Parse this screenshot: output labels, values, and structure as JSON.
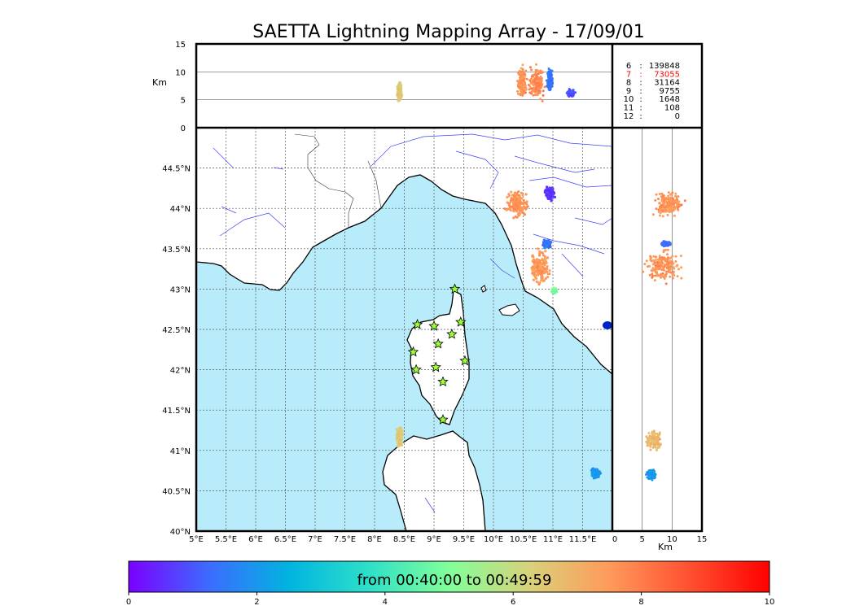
{
  "chart_data": {
    "type": "scatter",
    "title": "SAETTA Lightning Mapping Array - 17/09/01",
    "colors": {
      "sea": "#b8ecfb",
      "land": "#ffffff",
      "coast": "#000000",
      "river": "#4040ff",
      "station_fill": "#99ff33",
      "count_highlight": "#ff0000"
    },
    "time_colormap": [
      "#7b00ff",
      "#3d6bff",
      "#00b4e0",
      "#2ee0c8",
      "#80ff99",
      "#d8d27a",
      "#ff9a5a",
      "#ff5030",
      "#ff0000"
    ],
    "map": {
      "lon_range": [
        5,
        12
      ],
      "lat_range": [
        40,
        45
      ],
      "lon_ticks": [
        5,
        5.5,
        6,
        6.5,
        7,
        7.5,
        8,
        8.5,
        9,
        9.5,
        10,
        10.5,
        11,
        11.5
      ],
      "lon_tick_labels": [
        "5°E",
        "5.5°E",
        "6°E",
        "6.5°E",
        "7°E",
        "7.5°E",
        "8°E",
        "8.5°E",
        "9°E",
        "9.5°E",
        "10°E",
        "10.5°E",
        "11°E",
        "11.5°E"
      ],
      "lat_ticks": [
        40,
        40.5,
        41,
        41.5,
        42,
        42.5,
        43,
        43.5,
        44,
        44.5
      ],
      "lat_tick_labels": [
        "40°N",
        "40.5°N",
        "41°N",
        "41.5°N",
        "42°N",
        "42.5°N",
        "43°N",
        "43.5°N",
        "44°N",
        "44.5°N"
      ],
      "grid": "dotted",
      "stations": [
        {
          "lon": 9.35,
          "lat": 43.0
        },
        {
          "lon": 8.72,
          "lat": 42.56
        },
        {
          "lon": 9.0,
          "lat": 42.54
        },
        {
          "lon": 9.45,
          "lat": 42.59
        },
        {
          "lon": 9.3,
          "lat": 42.44
        },
        {
          "lon": 9.07,
          "lat": 42.32
        },
        {
          "lon": 8.65,
          "lat": 42.22
        },
        {
          "lon": 9.52,
          "lat": 42.11
        },
        {
          "lon": 8.7,
          "lat": 42.0
        },
        {
          "lon": 9.03,
          "lat": 42.03
        },
        {
          "lon": 9.15,
          "lat": 41.85
        },
        {
          "lon": 9.15,
          "lat": 41.38
        }
      ],
      "clusters": [
        {
          "lon": 10.4,
          "lat": 44.05,
          "dlon": 0.22,
          "dlat": 0.2,
          "time": 7.6
        },
        {
          "lon": 10.95,
          "lat": 44.18,
          "dlon": 0.1,
          "dlat": 0.1,
          "time": 0.6
        },
        {
          "lon": 10.78,
          "lat": 43.28,
          "dlon": 0.2,
          "dlat": 0.26,
          "time": 7.5
        },
        {
          "lon": 10.9,
          "lat": 43.56,
          "dlon": 0.08,
          "dlat": 0.06,
          "time": 1.4
        },
        {
          "lon": 11.02,
          "lat": 42.98,
          "dlon": 0.05,
          "dlat": 0.04,
          "time": 5.0
        },
        {
          "lon": 8.42,
          "lat": 41.15,
          "dlon": 0.06,
          "dlat": 0.15,
          "time": 6.5
        },
        {
          "lon": 11.72,
          "lat": 40.72,
          "dlon": 0.1,
          "dlat": 0.08,
          "time": 2.0
        }
      ]
    },
    "lon_alt": {
      "ylabel": "Km",
      "ylim": [
        0,
        15
      ],
      "y_ticks": [
        0,
        5,
        10,
        15
      ],
      "y_tick_labels": [
        "0",
        "5",
        "10",
        "15"
      ],
      "clusters": [
        {
          "lon": 10.48,
          "alt": 8.2,
          "dlon": 0.1,
          "dalt": 5.8,
          "time": 7.6
        },
        {
          "lon": 10.72,
          "alt": 8.0,
          "dlon": 0.16,
          "dalt": 6.2,
          "time": 7.8
        },
        {
          "lon": 10.95,
          "alt": 8.5,
          "dlon": 0.06,
          "dalt": 4.0,
          "time": 1.5
        },
        {
          "lon": 11.3,
          "alt": 6.2,
          "dlon": 0.08,
          "dalt": 1.2,
          "time": 1.0
        },
        {
          "lon": 8.42,
          "alt": 6.5,
          "dlon": 0.05,
          "dalt": 3.8,
          "time": 6.5
        }
      ]
    },
    "alt_lat": {
      "xlabel": "Km",
      "xlim": [
        0,
        15
      ],
      "x_ticks": [
        0,
        5,
        10,
        15
      ],
      "x_tick_labels": [
        "0",
        "5",
        "10",
        "15"
      ],
      "clusters": [
        {
          "alt": 9.5,
          "lat": 44.05,
          "dalt": 5.0,
          "dlat": 0.2,
          "time": 7.6
        },
        {
          "alt": 8.5,
          "lat": 43.28,
          "dalt": 6.5,
          "dlat": 0.25,
          "time": 7.6
        },
        {
          "alt": 9.0,
          "lat": 43.56,
          "dalt": 1.5,
          "dlat": 0.04,
          "time": 1.3
        },
        {
          "alt": 7.0,
          "lat": 41.13,
          "dalt": 2.5,
          "dlat": 0.15,
          "time": 6.8
        },
        {
          "alt": 6.5,
          "lat": 40.7,
          "dalt": 1.5,
          "dlat": 0.07,
          "time": 2.0
        }
      ]
    },
    "counts": [
      {
        "label": "6",
        "value": "139848",
        "highlight": false
      },
      {
        "label": "7",
        "value": "73055",
        "highlight": true
      },
      {
        "label": "8",
        "value": "31164",
        "highlight": false
      },
      {
        "label": "9",
        "value": "9755",
        "highlight": false
      },
      {
        "label": "10",
        "value": "1648",
        "highlight": false
      },
      {
        "label": "11",
        "value": "108",
        "highlight": false
      },
      {
        "label": "12",
        "value": "0",
        "highlight": false
      }
    ],
    "colorbar": {
      "label": "from 00:40:00 to 00:49:59",
      "range": [
        0,
        10
      ],
      "ticks": [
        0,
        2,
        4,
        6,
        8,
        10
      ],
      "tick_labels": [
        "0",
        "2",
        "4",
        "6",
        "8",
        "10"
      ]
    }
  }
}
